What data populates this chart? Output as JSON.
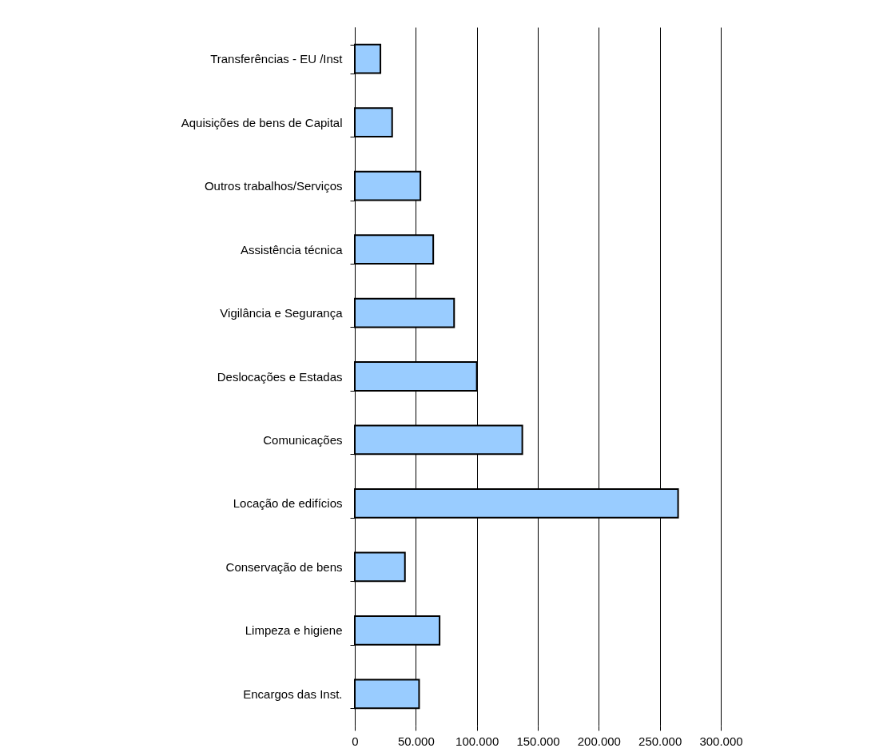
{
  "chart_data": {
    "type": "bar",
    "orientation": "horizontal",
    "categories": [
      "Transferências - EU /Inst",
      "Aquisições de bens de Capital",
      "Outros trabalhos/Serviços",
      "Assistência técnica",
      "Vigilância e Segurança",
      "Deslocações e Estadas",
      "Comunicações",
      "Locação de edifícios",
      "Conservação de bens",
      "Limpeza e higiene",
      "Encargos das Inst."
    ],
    "values": [
      21000,
      30600,
      53800,
      64300,
      81400,
      100000,
      137300,
      265000,
      41100,
      69500,
      52700
    ],
    "color": "#99ccff",
    "xlim": [
      0,
      300000
    ],
    "xticks": [
      0,
      {
        "value": 50000,
        "label": "50.000"
      },
      {
        "value": 100000,
        "label": "100.000"
      },
      {
        "value": 150000,
        "label": "150.000"
      },
      {
        "value": 200000,
        "label": "200.000"
      },
      {
        "value": 250000,
        "label": "250.000"
      },
      {
        "value": 300000,
        "label": "300.000"
      }
    ],
    "grid": "x"
  }
}
